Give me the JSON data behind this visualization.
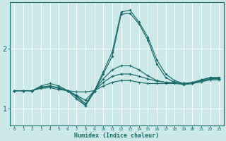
{
  "xlabel": "Humidex (Indice chaleur)",
  "bg_color": "#cce8e8",
  "line_color": "#1a6b6b",
  "grid_color": "#ffffff",
  "xlim": [
    -0.5,
    23.5
  ],
  "ylim": [
    0.72,
    2.78
  ],
  "yticks": [
    1,
    2
  ],
  "xticks": [
    0,
    1,
    2,
    3,
    4,
    5,
    6,
    7,
    8,
    9,
    10,
    11,
    12,
    13,
    14,
    15,
    16,
    17,
    18,
    19,
    20,
    21,
    22,
    23
  ],
  "series": {
    "spike1": [
      1.3,
      1.3,
      1.3,
      1.35,
      1.38,
      1.34,
      1.3,
      1.22,
      1.08,
      1.3,
      1.62,
      1.95,
      2.62,
      2.65,
      2.45,
      2.2,
      1.82,
      1.58,
      1.47,
      1.42,
      1.43,
      1.48,
      1.52,
      1.52
    ],
    "spike2": [
      1.3,
      1.3,
      1.3,
      1.35,
      1.38,
      1.34,
      1.3,
      1.2,
      1.05,
      1.28,
      1.58,
      1.88,
      2.58,
      2.6,
      2.42,
      2.15,
      1.75,
      1.52,
      1.44,
      1.4,
      1.42,
      1.46,
      1.5,
      1.5
    ],
    "flat1": [
      1.3,
      1.3,
      1.3,
      1.38,
      1.42,
      1.38,
      1.3,
      1.16,
      1.05,
      1.3,
      1.5,
      1.65,
      1.72,
      1.72,
      1.65,
      1.55,
      1.47,
      1.44,
      1.44,
      1.42,
      1.44,
      1.48,
      1.52,
      1.52
    ],
    "flat2": [
      1.3,
      1.3,
      1.3,
      1.36,
      1.38,
      1.35,
      1.3,
      1.22,
      1.14,
      1.3,
      1.44,
      1.54,
      1.58,
      1.58,
      1.54,
      1.5,
      1.46,
      1.44,
      1.44,
      1.42,
      1.43,
      1.46,
      1.5,
      1.5
    ],
    "flat3": [
      1.3,
      1.3,
      1.3,
      1.34,
      1.35,
      1.32,
      1.3,
      1.28,
      1.28,
      1.3,
      1.38,
      1.44,
      1.47,
      1.47,
      1.44,
      1.42,
      1.42,
      1.42,
      1.42,
      1.41,
      1.42,
      1.45,
      1.48,
      1.48
    ]
  }
}
